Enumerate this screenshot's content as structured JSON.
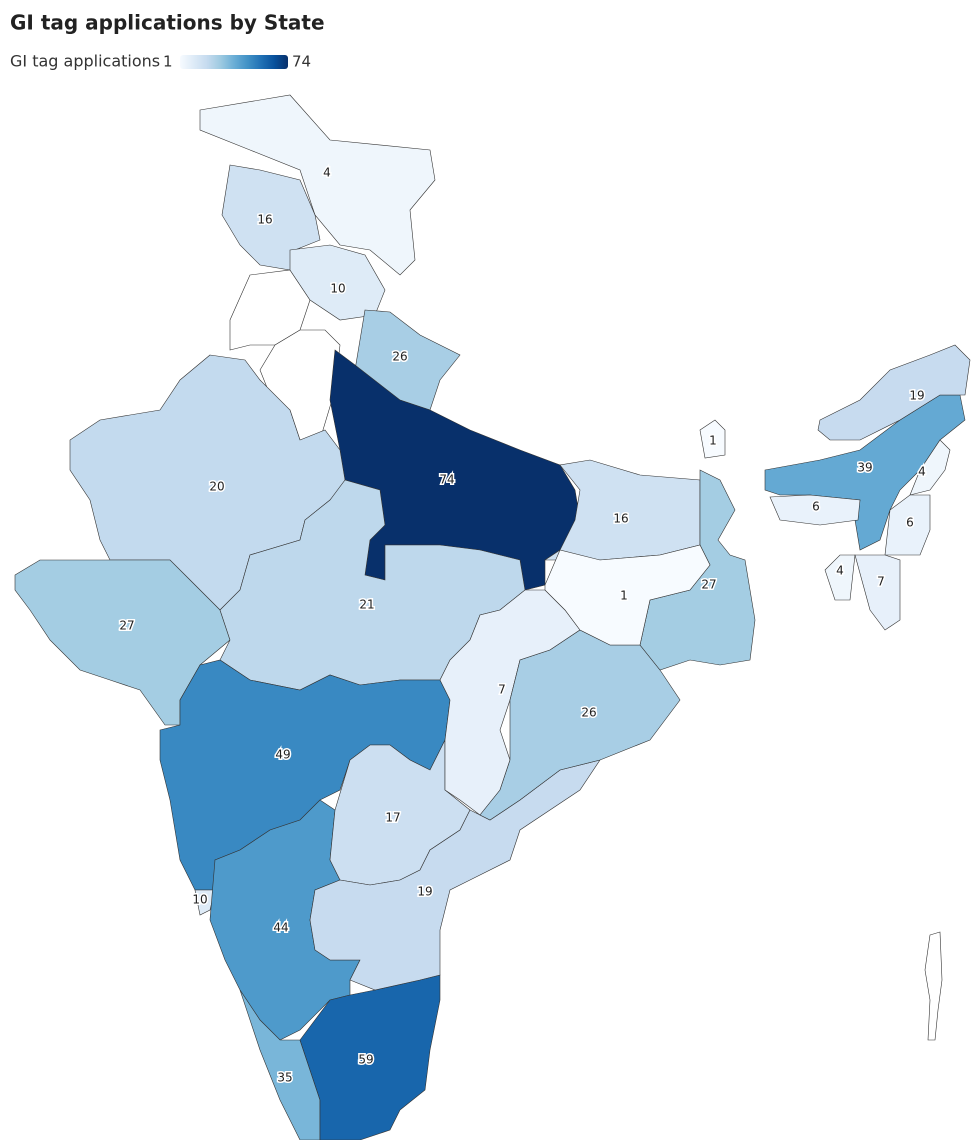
{
  "chart_data": {
    "type": "choropleth",
    "title": "GI tag applications by State",
    "legend": {
      "title": "GI tag applications",
      "min": 1,
      "max": 74
    },
    "color_scale": [
      "#f7fbff",
      "#deebf7",
      "#c6dbef",
      "#9ecae1",
      "#6baed6",
      "#4292c6",
      "#2171b5",
      "#08519c",
      "#08306b"
    ],
    "values": [
      4,
      16,
      10,
      26,
      74,
      20,
      27,
      21,
      49,
      10,
      44,
      35,
      59,
      17,
      19,
      7,
      26,
      1,
      16,
      27,
      1,
      39,
      19,
      4,
      6,
      6,
      4,
      7
    ]
  }
}
